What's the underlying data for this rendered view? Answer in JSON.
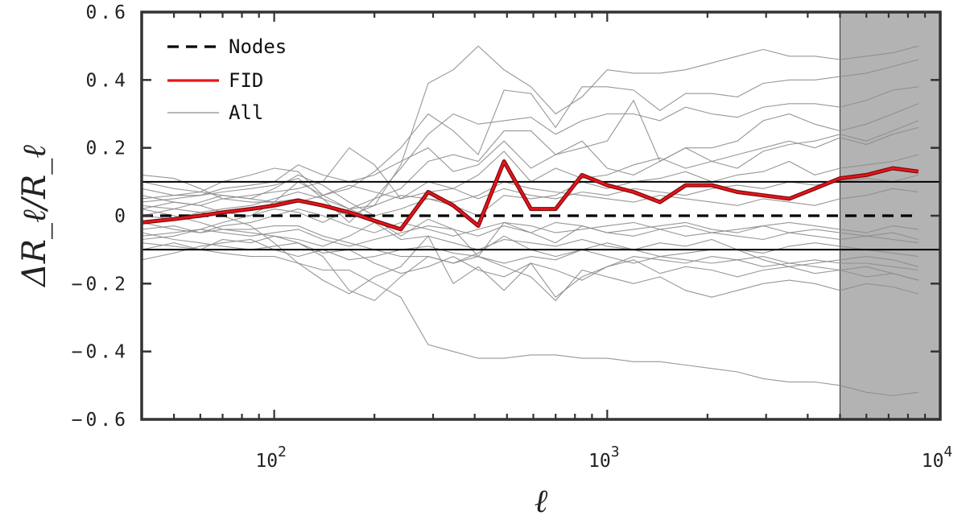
{
  "chart_data": {
    "type": "line",
    "xlabel": "ℓ",
    "ylabel": "ΔR_ℓ/R_ℓ",
    "xscale": "log",
    "xlim": [
      40,
      10000
    ],
    "ylim": [
      -0.6,
      0.6
    ],
    "x_ticks": [
      {
        "value": 100,
        "base": "10",
        "exp": "2"
      },
      {
        "value": 1000,
        "base": "10",
        "exp": "3"
      },
      {
        "value": 10000,
        "base": "10",
        "exp": "4"
      }
    ],
    "y_ticks": [
      {
        "value": 0.6,
        "label": "0.6"
      },
      {
        "value": 0.4,
        "label": "0.4"
      },
      {
        "value": 0.2,
        "label": "0.2"
      },
      {
        "value": 0,
        "label": "0"
      },
      {
        "value": -0.2,
        "label": "−0.2"
      },
      {
        "value": -0.4,
        "label": "−0.4"
      },
      {
        "value": -0.6,
        "label": "−0.6"
      }
    ],
    "grid": false,
    "legend_position": "top-left",
    "shaded_region": {
      "x_from": 5000,
      "x_to": 10000,
      "color": "#b3b3b3"
    },
    "reference_lines": [
      0.1,
      -0.1
    ],
    "x": [
      40,
      50,
      60,
      70,
      85,
      100,
      118,
      140,
      168,
      200,
      240,
      290,
      345,
      410,
      490,
      590,
      700,
      840,
      1000,
      1200,
      1440,
      1720,
      2060,
      2460,
      2940,
      3520,
      4200,
      5000,
      6000,
      7200,
      8600
    ],
    "series": [
      {
        "name": "Nodes",
        "style": "dashed",
        "color": "#000000",
        "values": [
          0,
          0,
          0,
          0,
          0,
          0,
          0,
          0,
          0,
          0,
          0,
          0,
          0,
          0,
          0,
          0,
          0,
          0,
          0,
          0,
          0,
          0,
          0,
          0,
          0,
          0,
          0,
          0,
          0,
          0,
          0
        ]
      },
      {
        "name": "FID",
        "style": "solid",
        "color": "#e8141a",
        "values": [
          -0.02,
          -0.01,
          0.0,
          0.01,
          0.02,
          0.03,
          0.045,
          0.03,
          0.01,
          -0.015,
          -0.04,
          0.07,
          0.03,
          -0.03,
          0.16,
          0.02,
          0.02,
          0.12,
          0.09,
          0.07,
          0.04,
          0.09,
          0.09,
          0.07,
          0.06,
          0.05,
          0.08,
          0.11,
          0.12,
          0.14,
          0.13
        ]
      },
      {
        "name": "All",
        "style": "thin",
        "color": "#8c8c8c"
      }
    ],
    "all_curves": [
      [
        0.12,
        0.11,
        0.08,
        0.05,
        0.04,
        0.04,
        0.05,
        0.03,
        0.0,
        0.03,
        0.15,
        0.39,
        0.43,
        0.5,
        0.43,
        0.38,
        0.3,
        0.35,
        0.43,
        0.42,
        0.42,
        0.43,
        0.45,
        0.47,
        0.49,
        0.47,
        0.47,
        0.46,
        0.47,
        0.48,
        0.5
      ],
      [
        -0.08,
        -0.09,
        -0.1,
        -0.11,
        -0.12,
        -0.12,
        -0.14,
        -0.16,
        -0.16,
        -0.2,
        -0.24,
        -0.38,
        -0.4,
        -0.42,
        -0.42,
        -0.41,
        -0.41,
        -0.42,
        -0.42,
        -0.43,
        -0.43,
        -0.44,
        -0.45,
        -0.46,
        -0.48,
        -0.49,
        -0.49,
        -0.5,
        -0.52,
        -0.53,
        -0.52
      ],
      [
        0.03,
        0.02,
        0.01,
        0.0,
        -0.03,
        -0.08,
        -0.14,
        -0.19,
        -0.23,
        -0.18,
        -0.15,
        -0.06,
        -0.2,
        -0.15,
        -0.22,
        -0.14,
        -0.24,
        -0.18,
        -0.15,
        -0.12,
        -0.13,
        -0.14,
        -0.12,
        -0.13,
        -0.15,
        -0.14,
        -0.13,
        -0.14,
        -0.14,
        -0.15,
        -0.16
      ],
      [
        0.05,
        0.06,
        0.07,
        0.1,
        0.12,
        0.14,
        0.13,
        0.06,
        0.08,
        0.13,
        0.2,
        0.3,
        0.25,
        0.18,
        0.37,
        0.36,
        0.26,
        0.38,
        0.38,
        0.37,
        0.31,
        0.36,
        0.36,
        0.35,
        0.39,
        0.4,
        0.4,
        0.41,
        0.42,
        0.44,
        0.46
      ],
      [
        0.02,
        0.0,
        -0.02,
        -0.04,
        -0.05,
        -0.06,
        -0.08,
        -0.12,
        -0.22,
        -0.25,
        -0.18,
        -0.12,
        -0.14,
        -0.12,
        -0.15,
        -0.18,
        -0.25,
        -0.16,
        -0.18,
        -0.2,
        -0.18,
        -0.22,
        -0.24,
        -0.22,
        -0.2,
        -0.19,
        -0.2,
        -0.22,
        -0.2,
        -0.21,
        -0.23
      ],
      [
        0.08,
        0.06,
        0.06,
        0.07,
        0.08,
        0.09,
        0.11,
        0.05,
        -0.02,
        0.05,
        0.14,
        0.24,
        0.3,
        0.27,
        0.28,
        0.29,
        0.24,
        0.28,
        0.3,
        0.3,
        0.28,
        0.32,
        0.3,
        0.29,
        0.32,
        0.33,
        0.33,
        0.32,
        0.34,
        0.37,
        0.38
      ],
      [
        -0.06,
        -0.05,
        -0.04,
        -0.02,
        0.0,
        0.04,
        0.1,
        0.06,
        0.02,
        0.05,
        0.08,
        0.16,
        0.18,
        0.16,
        0.25,
        0.25,
        0.18,
        0.2,
        0.22,
        0.34,
        0.16,
        0.2,
        0.2,
        0.22,
        0.28,
        0.3,
        0.27,
        0.25,
        0.27,
        0.3,
        0.33
      ],
      [
        0.02,
        0.04,
        0.03,
        0.05,
        0.06,
        0.07,
        0.08,
        0.1,
        0.2,
        0.15,
        0.05,
        0.1,
        0.08,
        0.12,
        0.19,
        0.1,
        0.14,
        0.11,
        0.12,
        0.15,
        0.17,
        0.14,
        0.16,
        0.18,
        0.2,
        0.22,
        0.2,
        0.23,
        0.21,
        0.24,
        0.26
      ],
      [
        -0.04,
        -0.03,
        -0.05,
        -0.04,
        -0.04,
        -0.03,
        -0.03,
        -0.06,
        -0.08,
        -0.1,
        -0.12,
        -0.12,
        -0.14,
        -0.11,
        -0.06,
        -0.1,
        -0.12,
        -0.1,
        -0.08,
        -0.1,
        -0.12,
        -0.11,
        -0.1,
        -0.1,
        -0.13,
        -0.15,
        -0.14,
        -0.13,
        -0.12,
        -0.13,
        -0.15
      ],
      [
        0.0,
        0.02,
        0.04,
        0.06,
        0.05,
        0.08,
        0.12,
        0.09,
        0.04,
        0.0,
        0.02,
        0.05,
        0.03,
        0.0,
        0.06,
        0.05,
        0.06,
        0.1,
        0.08,
        0.1,
        0.11,
        0.13,
        0.1,
        0.12,
        0.13,
        0.16,
        0.12,
        0.14,
        0.15,
        0.16,
        0.18
      ],
      [
        -0.1,
        -0.08,
        -0.1,
        -0.07,
        -0.08,
        -0.06,
        -0.07,
        -0.09,
        -0.06,
        -0.02,
        -0.07,
        -0.06,
        -0.08,
        -0.1,
        -0.07,
        -0.08,
        -0.09,
        -0.07,
        -0.09,
        -0.1,
        -0.08,
        -0.09,
        -0.07,
        -0.1,
        -0.11,
        -0.09,
        -0.08,
        -0.09,
        -0.1,
        -0.11,
        -0.12
      ],
      [
        0.06,
        0.04,
        0.03,
        0.01,
        0.0,
        0.02,
        0.01,
        -0.02,
        0.02,
        -0.01,
        -0.06,
        -0.01,
        -0.04,
        -0.12,
        -0.02,
        -0.05,
        -0.08,
        -0.03,
        -0.05,
        -0.06,
        -0.04,
        -0.06,
        -0.05,
        -0.06,
        -0.07,
        -0.05,
        -0.06,
        -0.07,
        -0.06,
        -0.07,
        -0.08
      ],
      [
        -0.13,
        -0.11,
        -0.09,
        -0.08,
        -0.07,
        -0.1,
        -0.12,
        -0.1,
        -0.13,
        -0.12,
        -0.1,
        -0.09,
        -0.11,
        -0.12,
        -0.14,
        -0.12,
        -0.13,
        -0.1,
        -0.12,
        -0.14,
        -0.12,
        -0.13,
        -0.14,
        -0.13,
        -0.12,
        -0.14,
        -0.15,
        -0.16,
        -0.15,
        -0.17,
        -0.19
      ],
      [
        0.1,
        0.08,
        0.07,
        0.06,
        0.05,
        0.04,
        0.04,
        0.06,
        0.09,
        0.07,
        0.05,
        0.07,
        0.08,
        0.05,
        0.08,
        0.06,
        0.05,
        0.07,
        0.06,
        0.08,
        0.07,
        0.06,
        0.08,
        0.09,
        0.08,
        0.1,
        0.09,
        0.1,
        0.11,
        0.1,
        0.12
      ],
      [
        -0.02,
        -0.04,
        -0.05,
        -0.03,
        -0.02,
        0.0,
        0.02,
        0.0,
        -0.03,
        -0.05,
        -0.02,
        -0.04,
        -0.06,
        -0.04,
        -0.02,
        -0.03,
        -0.05,
        -0.04,
        -0.03,
        -0.02,
        -0.04,
        -0.03,
        -0.05,
        -0.04,
        -0.03,
        -0.05,
        -0.04,
        -0.05,
        -0.06,
        -0.05,
        -0.07
      ],
      [
        0.04,
        0.05,
        0.06,
        0.08,
        0.09,
        0.1,
        0.15,
        0.12,
        0.1,
        0.12,
        0.16,
        0.2,
        0.13,
        0.15,
        0.22,
        0.14,
        0.18,
        0.22,
        0.14,
        0.12,
        0.16,
        0.2,
        0.16,
        0.14,
        0.19,
        0.21,
        0.22,
        0.24,
        0.22,
        0.25,
        0.28
      ],
      [
        -0.07,
        -0.06,
        -0.04,
        -0.05,
        -0.06,
        -0.05,
        -0.04,
        -0.07,
        -0.09,
        -0.07,
        -0.05,
        -0.03,
        -0.04,
        -0.06,
        -0.03,
        -0.05,
        -0.02,
        -0.03,
        -0.05,
        -0.04,
        -0.03,
        -0.02,
        -0.04,
        -0.05,
        -0.03,
        -0.02,
        -0.03,
        -0.04,
        -0.05,
        -0.03,
        -0.04
      ],
      [
        0.0,
        -0.01,
        0.01,
        0.02,
        0.03,
        0.05,
        0.07,
        0.05,
        0.02,
        0.03,
        0.06,
        0.05,
        0.04,
        0.06,
        0.1,
        0.08,
        0.07,
        0.06,
        0.05,
        0.04,
        0.06,
        0.05,
        0.04,
        0.03,
        0.05,
        0.04,
        0.03,
        0.05,
        0.06,
        0.08,
        0.07
      ],
      [
        -0.05,
        -0.07,
        -0.08,
        -0.09,
        -0.1,
        -0.09,
        -0.08,
        -0.11,
        -0.1,
        -0.14,
        -0.17,
        -0.15,
        -0.12,
        -0.16,
        -0.18,
        -0.14,
        -0.16,
        -0.19,
        -0.15,
        -0.13,
        -0.17,
        -0.15,
        -0.16,
        -0.18,
        -0.16,
        -0.15,
        -0.17,
        -0.16,
        -0.18,
        -0.17,
        -0.19
      ]
    ]
  }
}
